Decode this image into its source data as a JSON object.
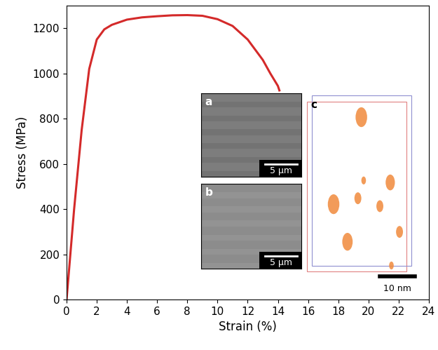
{
  "chart_data": {
    "type": "line",
    "x": [
      0,
      0.5,
      1.0,
      1.5,
      2.0,
      2.5,
      3.0,
      4.0,
      5.0,
      6.0,
      7.0,
      8.0,
      9.0,
      10.0,
      11.0,
      12.0,
      13.0,
      13.5,
      14.0,
      14.1
    ],
    "values": [
      0,
      400,
      750,
      1020,
      1150,
      1195,
      1215,
      1238,
      1248,
      1253,
      1257,
      1258,
      1255,
      1240,
      1210,
      1150,
      1060,
      1000,
      945,
      925
    ],
    "color": "#d42a2a",
    "x_label": "Strain (%)",
    "y_label": "Stress (MPa)",
    "xlim": [
      0,
      24
    ],
    "ylim": [
      0,
      1300
    ],
    "xticks": [
      0,
      2,
      4,
      6,
      8,
      10,
      12,
      14,
      16,
      18,
      20,
      22,
      24
    ],
    "yticks": [
      0,
      200,
      400,
      600,
      800,
      1000,
      1200
    ],
    "insets": [
      {
        "label": "a",
        "scale_bar": "5 μm"
      },
      {
        "label": "b",
        "scale_bar": "5 μm"
      },
      {
        "label": "c",
        "scale_bar": "10 nm"
      }
    ]
  }
}
